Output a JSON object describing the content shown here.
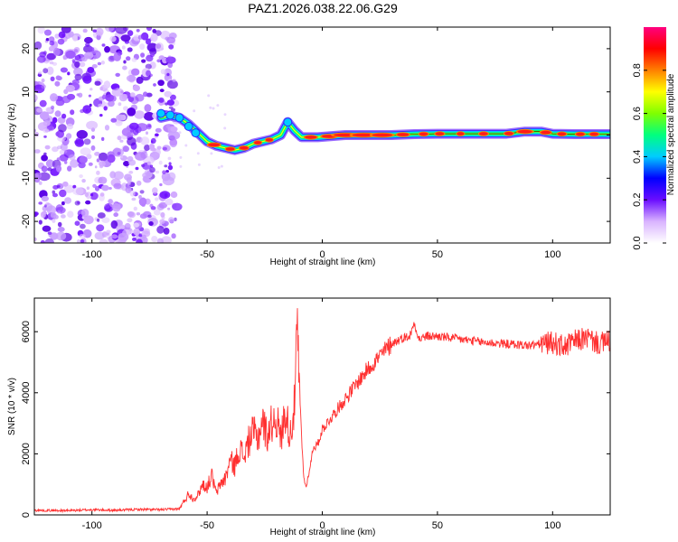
{
  "title": "PAZ1.2026.038.22.06.G29",
  "chart_data": [
    {
      "type": "heatmap",
      "title": "PAZ1.2026.038.22.06.G29",
      "xlabel": "Height of straight line (km)",
      "ylabel": "Frequency (Hz)",
      "xlim": [
        -125,
        125
      ],
      "ylim": [
        -25,
        25
      ],
      "xticks": [
        -100,
        -50,
        0,
        50,
        100
      ],
      "yticks": [
        -20,
        -10,
        0,
        10,
        20
      ],
      "ridge": {
        "x": [
          -70,
          -66,
          -62,
          -58,
          -54,
          -50,
          -46,
          -42,
          -38,
          -34,
          -30,
          -26,
          -22,
          -18,
          -15,
          -12,
          -9,
          -6,
          -2,
          3,
          10,
          20,
          30,
          40,
          50,
          60,
          70,
          80,
          88,
          95,
          100,
          110,
          125
        ],
        "freq": [
          4,
          4.5,
          4,
          2.5,
          0.5,
          -1.5,
          -2.5,
          -3,
          -3.5,
          -3,
          -2,
          -1.5,
          -1,
          0,
          3,
          1,
          -0.5,
          -0.5,
          -0.5,
          -0.3,
          0,
          0,
          0,
          0.2,
          0.3,
          0.3,
          0.3,
          0.3,
          0.8,
          0.8,
          0.3,
          0.2,
          0.2
        ]
      },
      "noise_region_x": [
        -125,
        -63
      ],
      "colorbar": {
        "label": "Normalized spectral amplitude",
        "ticks": [
          0.0,
          0.2,
          0.4,
          0.6,
          0.8
        ],
        "tick_labels": [
          "0.0",
          "0.2",
          "0.4",
          "0.6",
          "0.8"
        ],
        "range": [
          0,
          1
        ],
        "colors": [
          "#ffffff",
          "#d9b3ff",
          "#6a0dff",
          "#0000ff",
          "#00ccff",
          "#00ff7f",
          "#7fff00",
          "#ffff00",
          "#ff8000",
          "#ff0000",
          "#ff007f"
        ]
      }
    },
    {
      "type": "line",
      "xlabel": "Height of straight line (km)",
      "ylabel": "SNR (10 * v/v)",
      "xlim": [
        -125,
        125
      ],
      "ylim": [
        0,
        7100
      ],
      "xticks": [
        -100,
        -50,
        0,
        50,
        100
      ],
      "yticks": [
        0,
        2000,
        4000,
        6000
      ],
      "series": [
        {
          "name": "SNR",
          "color": "#ff3030",
          "x": [
            -125,
            -110,
            -100,
            -90,
            -80,
            -70,
            -62,
            -60,
            -58,
            -56,
            -54,
            -52,
            -50,
            -48,
            -46,
            -44,
            -42,
            -40,
            -38,
            -36,
            -34,
            -32,
            -30,
            -28,
            -26,
            -24,
            -22,
            -20,
            -18,
            -16,
            -14,
            -12,
            -11,
            -10,
            -9,
            -8,
            -7,
            -6,
            -5,
            -4,
            -2,
            0,
            5,
            10,
            15,
            20,
            25,
            30,
            35,
            38,
            40,
            42,
            45,
            50,
            60,
            70,
            80,
            90,
            95,
            100,
            105,
            110,
            115,
            120,
            125
          ],
          "y": [
            150,
            140,
            170,
            150,
            180,
            170,
            200,
            450,
            700,
            520,
            650,
            1000,
            900,
            1300,
            700,
            1050,
            1200,
            1800,
            1600,
            2200,
            1900,
            2400,
            2700,
            2500,
            3100,
            2600,
            3000,
            3200,
            2500,
            3400,
            2600,
            3600,
            6000,
            4500,
            2500,
            1200,
            900,
            1300,
            1700,
            2200,
            2300,
            2800,
            3300,
            3800,
            4300,
            4800,
            5200,
            5600,
            5800,
            5850,
            6300,
            5750,
            5850,
            5850,
            5750,
            5650,
            5600,
            5550,
            5600,
            5650,
            5500,
            5700,
            5800,
            5600,
            5700
          ]
        }
      ]
    }
  ]
}
